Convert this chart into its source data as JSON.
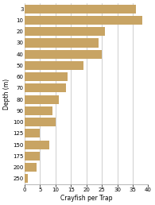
{
  "depths": [
    "3",
    "10",
    "20",
    "30",
    "40",
    "50",
    "60",
    "70",
    "80",
    "90",
    "100",
    "125",
    "150",
    "175",
    "200",
    "250"
  ],
  "values": [
    36,
    38,
    26,
    24,
    25,
    19,
    14,
    13.5,
    11,
    9,
    10,
    5,
    8,
    5,
    4,
    1
  ],
  "bar_color": "#c8a464",
  "xlabel": "Crayfish per Trap",
  "ylabel": "Depth (m)",
  "xlim": [
    0,
    40
  ],
  "xticks": [
    0,
    5,
    10,
    15,
    20,
    25,
    30,
    35,
    40
  ],
  "background_color": "#ffffff",
  "grid_color": "#bbbbbb",
  "bar_height": 0.78,
  "label_fontsize": 5.0,
  "axis_label_fontsize": 5.5
}
